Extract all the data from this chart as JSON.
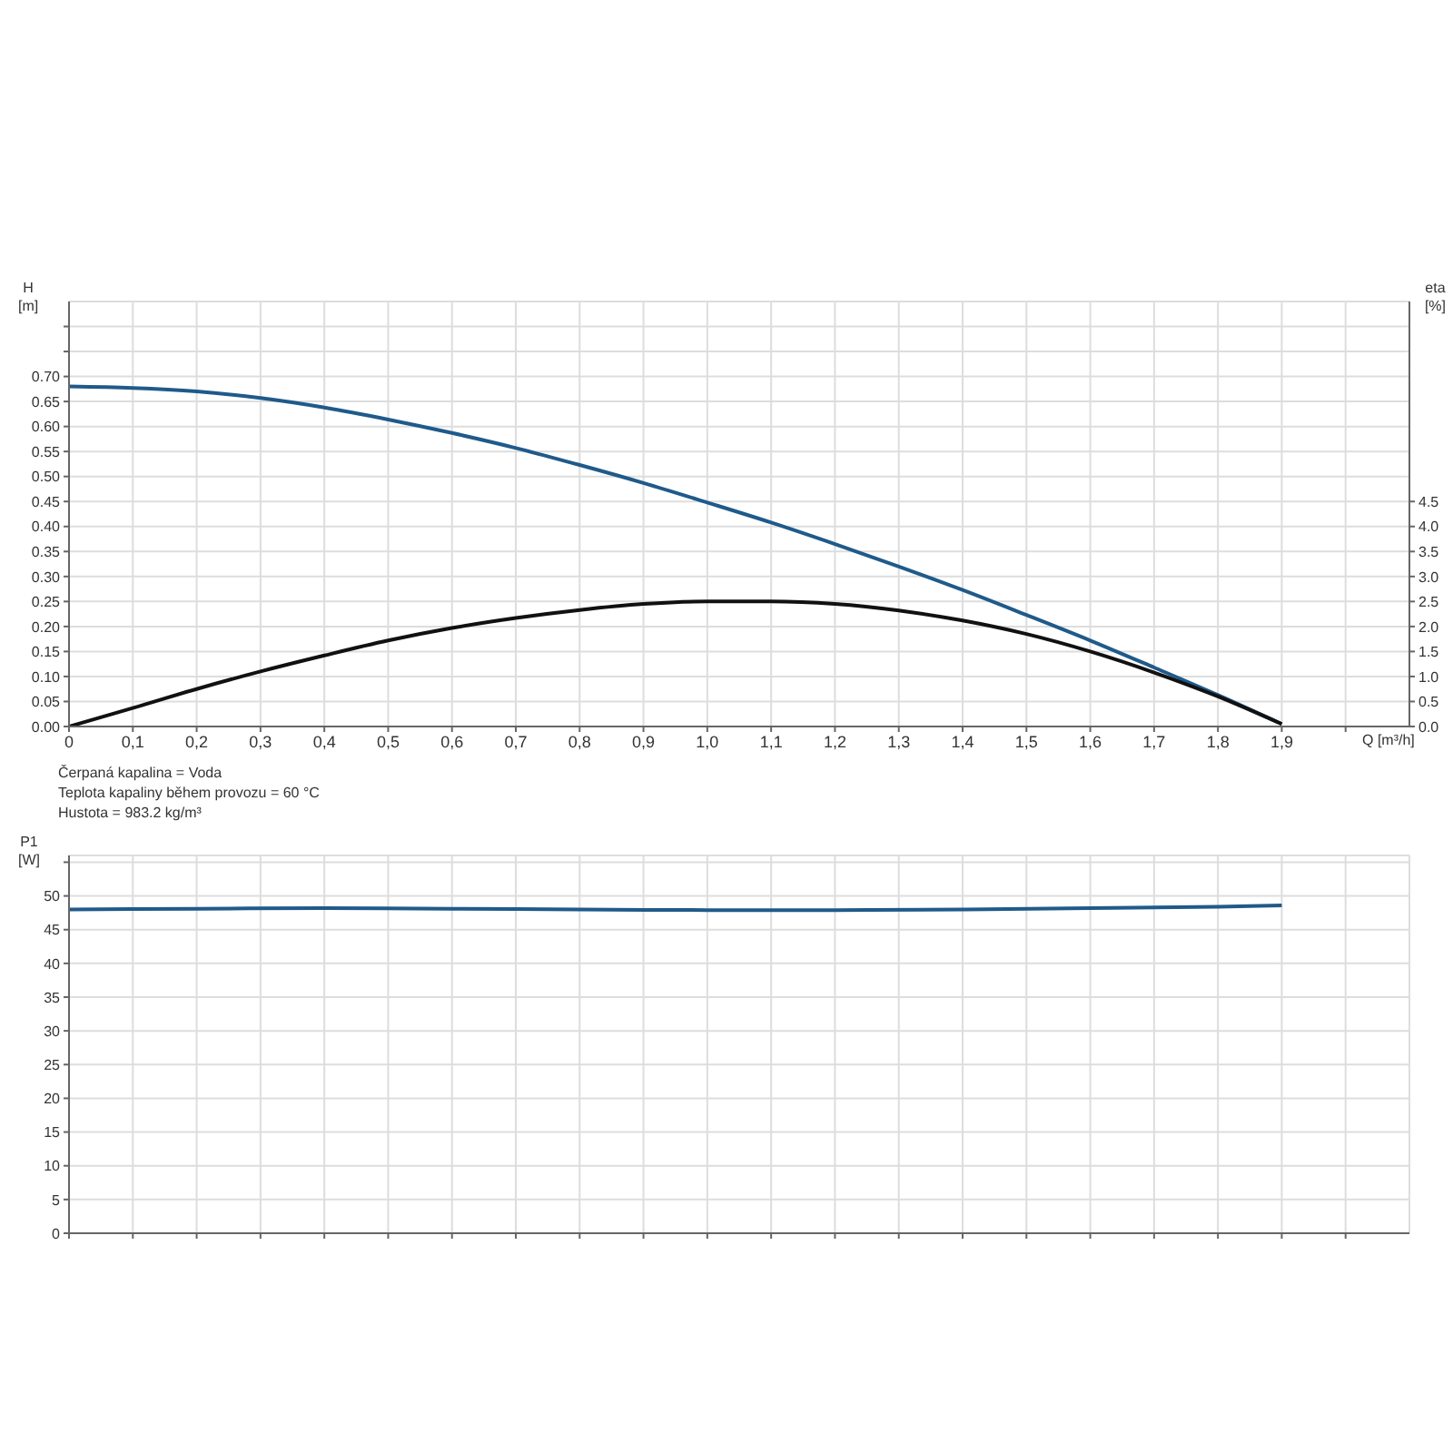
{
  "chart_data": [
    {
      "type": "line",
      "xlabel": "Q [m³/h]",
      "ylabel": "H [m]",
      "y2label": "eta [%]",
      "xlim": [
        0,
        2.1
      ],
      "xticks": [
        {
          "value": 0,
          "label": "0"
        },
        {
          "value": 0.1,
          "label": "0,1"
        },
        {
          "value": 0.2,
          "label": "0,2"
        },
        {
          "value": 0.3,
          "label": "0,3"
        },
        {
          "value": 0.4,
          "label": "0,4"
        },
        {
          "value": 0.5,
          "label": "0,5"
        },
        {
          "value": 0.6,
          "label": "0,6"
        },
        {
          "value": 0.7,
          "label": "0,7"
        },
        {
          "value": 0.8,
          "label": "0,8"
        },
        {
          "value": 0.9,
          "label": "0,9"
        },
        {
          "value": 1.0,
          "label": "1,0"
        },
        {
          "value": 1.1,
          "label": "1,1"
        },
        {
          "value": 1.2,
          "label": "1,2"
        },
        {
          "value": 1.3,
          "label": "1,3"
        },
        {
          "value": 1.4,
          "label": "1,4"
        },
        {
          "value": 1.5,
          "label": "1,5"
        },
        {
          "value": 1.6,
          "label": "1,6"
        },
        {
          "value": 1.7,
          "label": "1,7"
        },
        {
          "value": 1.8,
          "label": "1,8"
        },
        {
          "value": 1.9,
          "label": "1,9"
        },
        {
          "value": 2.0,
          "label": null
        }
      ],
      "ylim": [
        0,
        0.85
      ],
      "yticks": [
        {
          "value": 0,
          "label": "0.00"
        },
        {
          "value": 0.05,
          "label": "0.05"
        },
        {
          "value": 0.1,
          "label": "0.10"
        },
        {
          "value": 0.15,
          "label": "0.15"
        },
        {
          "value": 0.2,
          "label": "0.20"
        },
        {
          "value": 0.25,
          "label": "0.25"
        },
        {
          "value": 0.3,
          "label": "0.30"
        },
        {
          "value": 0.35,
          "label": "0.35"
        },
        {
          "value": 0.4,
          "label": "0.40"
        },
        {
          "value": 0.45,
          "label": "0.45"
        },
        {
          "value": 0.5,
          "label": "0.50"
        },
        {
          "value": 0.55,
          "label": "0.55"
        },
        {
          "value": 0.6,
          "label": "0.60"
        },
        {
          "value": 0.65,
          "label": "0.65"
        },
        {
          "value": 0.7,
          "label": "0.70"
        },
        {
          "value": 0.75,
          "label": null
        },
        {
          "value": 0.8,
          "label": null
        }
      ],
      "y2lim": [
        0,
        8.5
      ],
      "y2ticks": [
        {
          "value": 0,
          "label": "0.0"
        },
        {
          "value": 0.5,
          "label": "0.5"
        },
        {
          "value": 1,
          "label": "1.0"
        },
        {
          "value": 1.5,
          "label": "1.5"
        },
        {
          "value": 2,
          "label": "2.0"
        },
        {
          "value": 2.5,
          "label": "2.5"
        },
        {
          "value": 3,
          "label": "3.0"
        },
        {
          "value": 3.5,
          "label": "3.5"
        },
        {
          "value": 4,
          "label": "4.0"
        },
        {
          "value": 4.5,
          "label": "4.5"
        }
      ],
      "grid": true,
      "marker": "none",
      "line_style": "solid",
      "series": [
        {
          "color": "#1f5a8a",
          "x": [
            0,
            0.1,
            0.2,
            0.3,
            0.4,
            0.5,
            0.6,
            0.7,
            0.8,
            0.9,
            1.0,
            1.1,
            1.2,
            1.3,
            1.4,
            1.5,
            1.6,
            1.7,
            1.8,
            1.9
          ],
          "values": [
            0.68,
            0.677,
            0.67,
            0.657,
            0.638,
            0.614,
            0.587,
            0.557,
            0.523,
            0.487,
            0.448,
            0.408,
            0.365,
            0.32,
            0.273,
            0.223,
            0.172,
            0.118,
            0.063,
            0.005
          ]
        },
        {
          "color": "#111111",
          "axis": "y2",
          "x": [
            0,
            0.1,
            0.2,
            0.3,
            0.4,
            0.5,
            0.6,
            0.7,
            0.8,
            0.9,
            1.0,
            1.1,
            1.2,
            1.3,
            1.4,
            1.5,
            1.6,
            1.7,
            1.8,
            1.9
          ],
          "values": [
            0,
            0.37,
            0.75,
            1.1,
            1.42,
            1.72,
            1.97,
            2.17,
            2.33,
            2.45,
            2.5,
            2.5,
            2.45,
            2.32,
            2.12,
            1.85,
            1.5,
            1.08,
            0.6,
            0.05
          ]
        }
      ],
      "annotations": [
        "Čerpaná kapalina = Voda",
        "Teplota kapaliny během provozu = 60 °C",
        "Hustota = 983.2 kg/m³"
      ]
    },
    {
      "type": "line",
      "ylabel": "P1 [W]",
      "xlim": [
        0,
        2.1
      ],
      "tick_labels": "y",
      "xticks": [
        0,
        0.1,
        0.2,
        0.3,
        0.4,
        0.5,
        0.6,
        0.7,
        0.8,
        0.9,
        1.0,
        1.1,
        1.2,
        1.3,
        1.4,
        1.5,
        1.6,
        1.7,
        1.8,
        1.9,
        2.0
      ],
      "ylim": [
        0,
        56
      ],
      "yticks": [
        0,
        5,
        10,
        15,
        20,
        25,
        30,
        35,
        40,
        45,
        50,
        {
          "value": 55,
          "label": null
        }
      ],
      "grid": true,
      "marker": "none",
      "line_style": "solid",
      "series": [
        {
          "color": "#1f5a8a",
          "x": [
            0,
            0.2,
            0.4,
            0.6,
            0.8,
            1.0,
            1.1,
            1.2,
            1.4,
            1.6,
            1.8,
            1.9
          ],
          "values": [
            48,
            48.1,
            48.2,
            48.1,
            48,
            47.9,
            47.9,
            47.9,
            48,
            48.2,
            48.4,
            48.6
          ]
        }
      ]
    }
  ]
}
